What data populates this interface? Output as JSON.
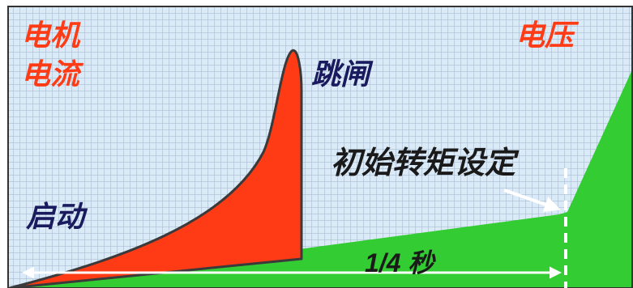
{
  "labels": {
    "motor_current_line1": "电机",
    "motor_current_line2": "电流",
    "voltage": "电压",
    "trip": "跳闸",
    "initial_torque_setting": "初始转矩设定",
    "start": "启动",
    "time_span": "1/4 秒"
  },
  "colors": {
    "background": "#dbeaf7",
    "grid": "#9fb3c8",
    "frame": "#333333",
    "current_fill": "#ff3b16",
    "voltage_fill": "#33cc33",
    "curve_stroke": "#3a3a3a",
    "red_text": "#ff3b16",
    "navy_text": "#1a1a5e",
    "dark_text": "#1a1a1a",
    "annotation": "#ffffff"
  }
}
